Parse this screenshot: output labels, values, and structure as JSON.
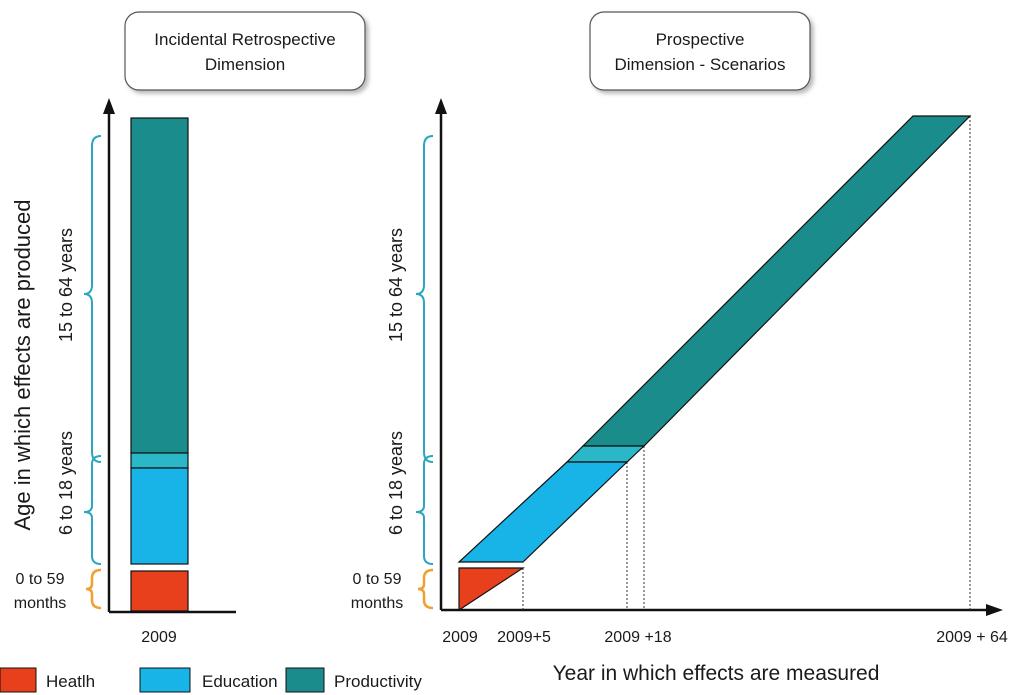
{
  "left_panel": {
    "title_line1": "Incidental Retrospective",
    "title_line2": "Dimension",
    "y_axis_label": "Age in which effects are produced",
    "bracket_productivity": "15 to 64 years",
    "bracket_education": "6 to 18 years",
    "bracket_health_line1": "0 to 59",
    "bracket_health_line2": "months",
    "x_tick": "2009"
  },
  "right_panel": {
    "title_line1": "Prospective",
    "title_line2": "Dimension - Scenarios",
    "bracket_productivity": "15 to 64 years",
    "bracket_education": "6 to 18 years",
    "bracket_health_line1": "0 to 59",
    "bracket_health_line2": "months",
    "x_ticks": [
      "2009",
      "2009+5",
      "2009 +18",
      "2009 + 64"
    ],
    "x_axis_label": "Year in which effects are measured"
  },
  "legend": [
    {
      "label": "Heatlh",
      "color": "#e8401c"
    },
    {
      "label": "Education",
      "color": "#18b4e8"
    },
    {
      "label": "Productivity",
      "color": "#1a8c8c"
    }
  ],
  "colors": {
    "health": "#e8401c",
    "education": "#18b4e8",
    "transition": "#2ab8c8",
    "productivity": "#1a8c8c",
    "bracket_teal": "#2aa6c0",
    "bracket_orange": "#f0a030"
  }
}
